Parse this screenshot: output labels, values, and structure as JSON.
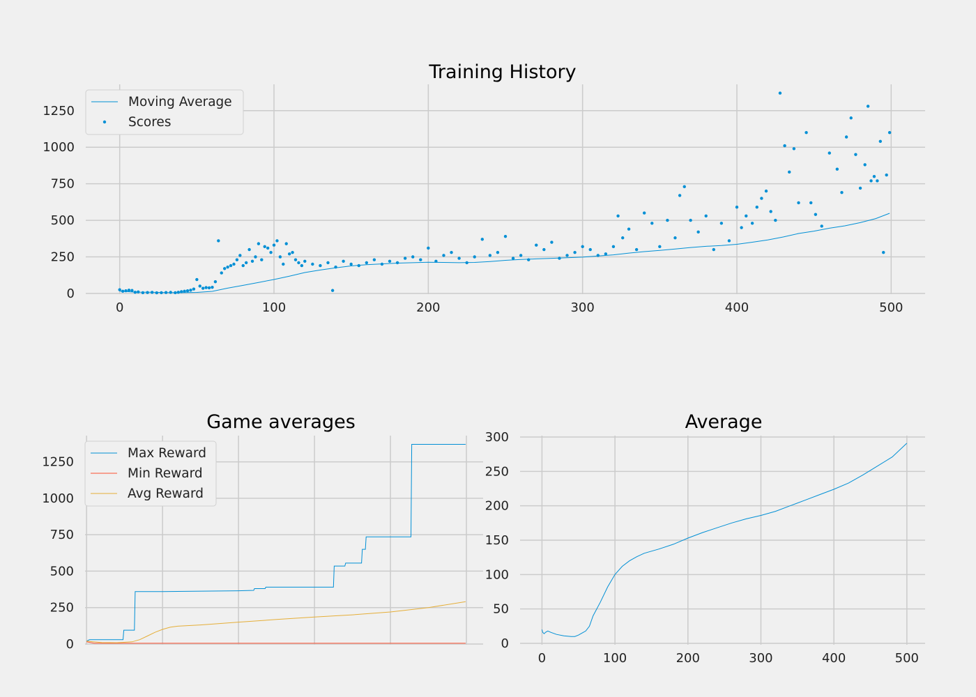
{
  "colors": {
    "background": "#f0f0f0",
    "grid": "#cbcbcb",
    "blue": "#008fd5",
    "red": "#fc4f30",
    "orange": "#e5ae38"
  },
  "chart_data": [
    {
      "type": "scatter",
      "title": "Training History",
      "xlabel": "",
      "ylabel": "",
      "xlim": [
        -22,
        522
      ],
      "ylim": [
        -5,
        1430
      ],
      "xticks": [
        0,
        100,
        200,
        300,
        400,
        500
      ],
      "yticks": [
        0,
        250,
        500,
        750,
        1000,
        1250
      ],
      "grid": true,
      "legend": "top-left",
      "series": [
        {
          "name": "Moving Average",
          "kind": "line",
          "color": "#008fd5",
          "x": [
            0,
            10,
            20,
            30,
            40,
            50,
            60,
            70,
            80,
            90,
            100,
            110,
            120,
            130,
            140,
            150,
            160,
            170,
            180,
            190,
            200,
            210,
            220,
            230,
            240,
            250,
            260,
            270,
            280,
            290,
            300,
            310,
            320,
            330,
            340,
            350,
            360,
            370,
            380,
            390,
            400,
            410,
            420,
            430,
            440,
            450,
            460,
            470,
            480,
            490,
            499
          ],
          "y": [
            15,
            9,
            8,
            6,
            5,
            7,
            14,
            36,
            55,
            75,
            95,
            118,
            143,
            160,
            175,
            188,
            196,
            202,
            207,
            210,
            213,
            212,
            210,
            212,
            218,
            226,
            232,
            236,
            240,
            244,
            248,
            256,
            264,
            276,
            286,
            294,
            304,
            314,
            322,
            328,
            336,
            350,
            366,
            386,
            410,
            426,
            446,
            462,
            484,
            512,
            548
          ]
        },
        {
          "name": "Scores",
          "kind": "scatter",
          "color": "#008fd5",
          "x": [
            0,
            2,
            4,
            6,
            8,
            10,
            12,
            15,
            18,
            21,
            24,
            27,
            30,
            33,
            36,
            38,
            40,
            42,
            44,
            46,
            48,
            50,
            52,
            54,
            56,
            58,
            60,
            62,
            64,
            66,
            68,
            70,
            72,
            74,
            76,
            78,
            80,
            82,
            84,
            86,
            88,
            90,
            92,
            94,
            96,
            98,
            100,
            102,
            104,
            106,
            108,
            110,
            112,
            114,
            116,
            118,
            120,
            125,
            130,
            135,
            138,
            140,
            145,
            150,
            155,
            160,
            165,
            170,
            175,
            180,
            185,
            190,
            195,
            200,
            205,
            210,
            215,
            220,
            225,
            230,
            235,
            240,
            245,
            250,
            255,
            260,
            265,
            270,
            275,
            280,
            285,
            290,
            295,
            300,
            305,
            310,
            315,
            320,
            323,
            326,
            330,
            335,
            340,
            345,
            350,
            355,
            360,
            363,
            366,
            370,
            375,
            380,
            385,
            390,
            395,
            400,
            403,
            406,
            410,
            413,
            416,
            419,
            422,
            425,
            428,
            431,
            434,
            437,
            440,
            445,
            448,
            451,
            455,
            460,
            465,
            468,
            471,
            474,
            477,
            480,
            483,
            485,
            487,
            489,
            491,
            493,
            495,
            497,
            499
          ],
          "y": [
            25,
            15,
            18,
            22,
            20,
            8,
            10,
            5,
            6,
            7,
            4,
            5,
            6,
            7,
            5,
            8,
            12,
            15,
            18,
            22,
            30,
            95,
            50,
            35,
            40,
            38,
            42,
            80,
            360,
            140,
            170,
            180,
            190,
            200,
            230,
            260,
            190,
            210,
            300,
            220,
            250,
            340,
            230,
            320,
            310,
            280,
            330,
            360,
            250,
            200,
            340,
            270,
            280,
            230,
            210,
            190,
            220,
            200,
            190,
            210,
            20,
            180,
            220,
            200,
            190,
            210,
            230,
            200,
            220,
            210,
            240,
            250,
            230,
            310,
            220,
            260,
            280,
            240,
            210,
            250,
            370,
            260,
            280,
            390,
            240,
            260,
            230,
            330,
            300,
            350,
            240,
            260,
            280,
            320,
            300,
            260,
            270,
            320,
            530,
            380,
            440,
            300,
            550,
            480,
            320,
            500,
            380,
            670,
            730,
            500,
            420,
            530,
            300,
            480,
            360,
            590,
            450,
            530,
            480,
            590,
            650,
            700,
            560,
            500,
            1370,
            1010,
            830,
            990,
            620,
            1100,
            620,
            540,
            460,
            960,
            850,
            690,
            1070,
            1200,
            950,
            720,
            880,
            1280,
            770,
            800,
            770,
            1040,
            280,
            810,
            1100
          ]
        }
      ]
    },
    {
      "type": "line",
      "title": "Game averages",
      "xlabel": "",
      "ylabel": "",
      "xlim": [
        -2,
        522
      ],
      "ylim": [
        -5,
        1430
      ],
      "xticks": [
        0,
        100,
        200,
        300,
        400,
        500
      ],
      "yticks": [
        0,
        250,
        500,
        750,
        1000,
        1250
      ],
      "xticklabels_shown": false,
      "grid": true,
      "legend": "top-left",
      "series": [
        {
          "name": "Max Reward",
          "color": "#008fd5",
          "x": [
            0,
            2,
            4,
            48,
            49,
            63,
            64,
            100,
            200,
            220,
            221,
            235,
            236,
            325,
            326,
            340,
            341,
            362,
            363,
            367,
            368,
            427,
            428,
            499
          ],
          "y": [
            20,
            25,
            30,
            30,
            95,
            95,
            360,
            360,
            365,
            368,
            380,
            380,
            390,
            390,
            535,
            535,
            555,
            555,
            650,
            650,
            735,
            735,
            1370,
            1370
          ]
        },
        {
          "name": "Min Reward",
          "color": "#fc4f30",
          "x": [
            0,
            10,
            499
          ],
          "y": [
            15,
            5,
            5
          ]
        },
        {
          "name": "Avg Reward",
          "color": "#e5ae38",
          "x": [
            0,
            20,
            40,
            60,
            70,
            80,
            90,
            100,
            110,
            120,
            150,
            200,
            250,
            300,
            350,
            400,
            450,
            499
          ],
          "y": [
            20,
            10,
            9,
            15,
            30,
            55,
            80,
            100,
            115,
            122,
            131,
            150,
            168,
            185,
            200,
            220,
            250,
            290
          ]
        }
      ]
    },
    {
      "type": "line",
      "title": "Average",
      "xlabel": "",
      "ylabel": "",
      "xlim": [
        -30,
        525
      ],
      "ylim": [
        -2,
        302
      ],
      "xticks": [
        0,
        100,
        200,
        300,
        400,
        500
      ],
      "yticks": [
        0,
        50,
        100,
        150,
        200,
        250,
        300
      ],
      "grid": true,
      "series": [
        {
          "name": "",
          "color": "#008fd5",
          "x": [
            0,
            1,
            3,
            5,
            8,
            12,
            20,
            30,
            40,
            45,
            50,
            55,
            60,
            65,
            70,
            80,
            90,
            100,
            110,
            120,
            130,
            140,
            150,
            160,
            180,
            200,
            220,
            240,
            260,
            280,
            300,
            320,
            340,
            360,
            380,
            400,
            420,
            440,
            460,
            480,
            500
          ],
          "y": [
            20,
            16,
            14,
            16,
            18,
            16,
            13,
            11,
            10,
            10,
            12,
            15,
            18,
            25,
            40,
            60,
            82,
            100,
            112,
            120,
            126,
            131,
            134,
            137,
            144,
            153,
            161,
            168,
            175,
            181,
            186,
            192,
            200,
            208,
            216,
            224,
            233,
            245,
            258,
            271,
            291
          ]
        }
      ]
    }
  ]
}
